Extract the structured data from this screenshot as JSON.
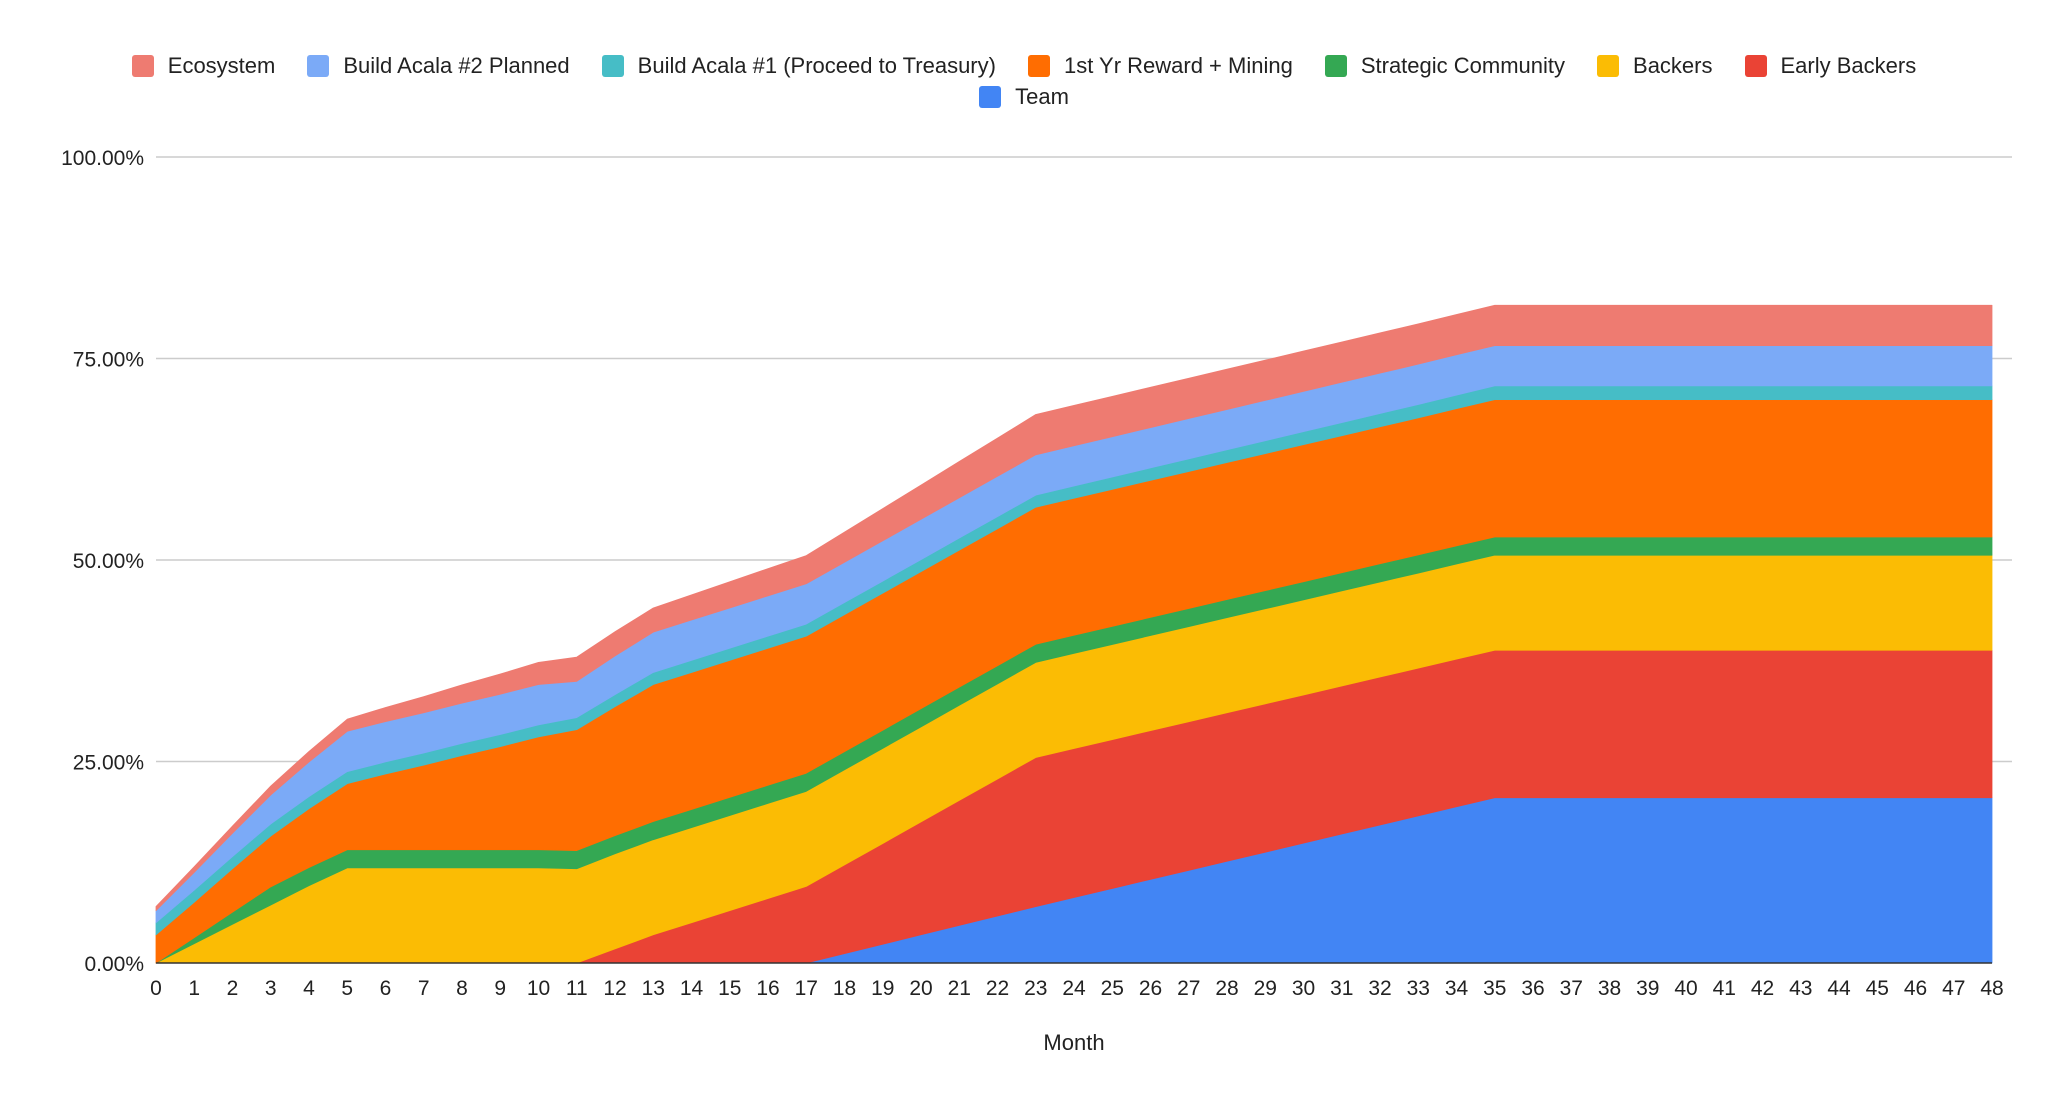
{
  "chart_data": {
    "type": "area",
    "stacked": true,
    "title": "",
    "xlabel": "Month",
    "ylabel": "",
    "ylim": [
      0,
      100
    ],
    "yticks": [
      "0.00%",
      "25.00%",
      "50.00%",
      "75.00%",
      "100.00%"
    ],
    "ytick_values": [
      0,
      25,
      50,
      75,
      100
    ],
    "grid": true,
    "legend_position": "top",
    "x": [
      0,
      1,
      2,
      3,
      4,
      5,
      6,
      7,
      8,
      9,
      10,
      11,
      12,
      13,
      14,
      15,
      16,
      17,
      18,
      19,
      20,
      21,
      22,
      23,
      24,
      25,
      26,
      27,
      28,
      29,
      30,
      31,
      32,
      33,
      34,
      35,
      36,
      37,
      38,
      39,
      40,
      41,
      42,
      43,
      44,
      45,
      46,
      47,
      48
    ],
    "legend_order": [
      "Ecosystem",
      "Build Acala #2 Planned",
      "Build Acala #1 (Proceed to Treasury)",
      "1st Yr Reward + Mining",
      "Strategic Community",
      "Backers",
      "Early Backers",
      "Team"
    ],
    "series": [
      {
        "name": "Team",
        "color": "#4285F4",
        "values": [
          0,
          0,
          0,
          0,
          0,
          0,
          0,
          0,
          0,
          0,
          0,
          0,
          0,
          0,
          0,
          0,
          0,
          0,
          1.17,
          2.33,
          3.5,
          4.67,
          5.83,
          7,
          8.13,
          9.25,
          10.38,
          11.5,
          12.63,
          13.75,
          14.88,
          16,
          17.13,
          18.25,
          19.38,
          20.5,
          20.5,
          20.5,
          20.5,
          20.5,
          20.5,
          20.5,
          20.5,
          20.5,
          20.5,
          20.5,
          20.5,
          20.5,
          20.5
        ]
      },
      {
        "name": "Early Backers",
        "color": "#EA4335",
        "values": [
          0,
          0,
          0,
          0,
          0,
          0,
          0,
          0,
          0,
          0,
          0,
          0,
          1.75,
          3.5,
          5,
          6.5,
          8,
          9.5,
          11,
          12.5,
          14,
          15.5,
          17,
          18.5,
          18.48,
          18.47,
          18.45,
          18.43,
          18.42,
          18.4,
          18.38,
          18.37,
          18.35,
          18.33,
          18.32,
          18.3,
          18.3,
          18.3,
          18.3,
          18.3,
          18.3,
          18.3,
          18.3,
          18.3,
          18.3,
          18.3,
          18.3,
          18.3,
          18.3
        ]
      },
      {
        "name": "Backers",
        "color": "#FBBC04",
        "values": [
          0,
          2.4,
          4.8,
          7.2,
          9.6,
          11.8,
          11.8,
          11.8,
          11.8,
          11.8,
          11.8,
          11.7,
          11.8,
          11.8,
          11.8,
          11.8,
          11.8,
          11.8,
          11.8,
          11.8,
          11.8,
          11.8,
          11.8,
          11.8,
          11.8,
          11.8,
          11.8,
          11.8,
          11.8,
          11.8,
          11.8,
          11.8,
          11.8,
          11.8,
          11.8,
          11.8,
          11.8,
          11.8,
          11.8,
          11.8,
          11.8,
          11.8,
          11.8,
          11.8,
          11.8,
          11.8,
          11.8,
          11.8,
          11.8
        ]
      },
      {
        "name": "Strategic Community",
        "color": "#34A853",
        "values": [
          0,
          0.75,
          1.5,
          2.25,
          2.25,
          2.25,
          2.25,
          2.25,
          2.25,
          2.25,
          2.25,
          2.25,
          2.25,
          2.25,
          2.25,
          2.25,
          2.25,
          2.25,
          2.25,
          2.25,
          2.25,
          2.25,
          2.25,
          2.25,
          2.25,
          2.25,
          2.25,
          2.25,
          2.25,
          2.25,
          2.25,
          2.25,
          2.25,
          2.25,
          2.25,
          2.25,
          2.25,
          2.25,
          2.25,
          2.25,
          2.25,
          2.25,
          2.25,
          2.25,
          2.25,
          2.25,
          2.25,
          2.25,
          2.25
        ]
      },
      {
        "name": "1st Yr Reward + Mining",
        "color": "#FF6D01",
        "values": [
          3.5,
          4.4,
          5.4,
          6.3,
          7.3,
          8.2,
          9.4,
          10.5,
          11.7,
          12.8,
          14,
          15,
          16,
          17,
          17,
          17,
          17,
          17,
          17,
          17,
          17,
          17,
          17,
          17,
          17,
          17,
          17,
          17,
          17,
          17,
          17,
          17,
          17,
          17,
          17.03,
          17.05,
          17.05,
          17.05,
          17.05,
          17.05,
          17.05,
          17.05,
          17.05,
          17.05,
          17.05,
          17.05,
          17.05,
          17.05,
          17.05
        ]
      },
      {
        "name": "Build Acala #1 (Proceed to Treasury)",
        "color": "#46BDC6",
        "values": [
          1.5,
          1.5,
          1.5,
          1.5,
          1.5,
          1.5,
          1.5,
          1.5,
          1.5,
          1.5,
          1.5,
          1.5,
          1.5,
          1.5,
          1.5,
          1.5,
          1.5,
          1.5,
          1.5,
          1.5,
          1.5,
          1.5,
          1.5,
          1.5,
          1.52,
          1.53,
          1.55,
          1.57,
          1.58,
          1.6,
          1.62,
          1.63,
          1.65,
          1.67,
          1.68,
          1.7,
          1.7,
          1.7,
          1.7,
          1.7,
          1.7,
          1.7,
          1.7,
          1.7,
          1.7,
          1.7,
          1.7,
          1.7,
          1.7
        ]
      },
      {
        "name": "Build Acala #2 Planned",
        "color": "#7BAAF7",
        "values": [
          1.5,
          2.2,
          2.9,
          3.6,
          4.3,
          5,
          5,
          5,
          5,
          5,
          5,
          4.5,
          4.8,
          5,
          5,
          5,
          5,
          5,
          5,
          5,
          5,
          5,
          5,
          5,
          5,
          5,
          5,
          5,
          5,
          5,
          5,
          5,
          5,
          5,
          5,
          5,
          5,
          5,
          5,
          5,
          5,
          5,
          5,
          5,
          5,
          5,
          5,
          5,
          5
        ]
      },
      {
        "name": "Ecosystem",
        "color": "#EE7B71",
        "values": [
          0.5,
          0.7,
          0.9,
          1.1,
          1.3,
          1.5,
          1.75,
          2,
          2.25,
          2.5,
          2.75,
          3,
          3,
          3,
          3.13,
          3.25,
          3.38,
          3.5,
          3.75,
          4,
          4.25,
          4.5,
          4.75,
          5,
          5,
          5,
          5,
          5,
          5,
          5,
          5,
          5,
          5,
          5,
          5,
          5,
          5,
          5,
          5,
          5,
          5,
          5,
          5,
          5,
          5,
          5,
          5,
          5,
          5
        ]
      }
    ]
  }
}
